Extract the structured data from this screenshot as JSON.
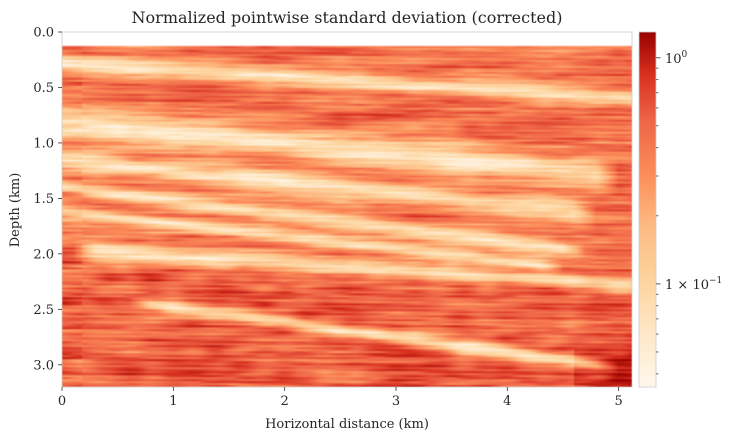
{
  "chart_data": {
    "type": "heatmap",
    "title": "Normalized pointwise standard deviation (corrected)",
    "xlabel": "Horizontal distance (km)",
    "ylabel": "Depth (km)",
    "xlim": [
      0,
      5.12
    ],
    "ylim": [
      3.2,
      0.0
    ],
    "xticks": [
      "0",
      "1",
      "2",
      "3",
      "4",
      "5"
    ],
    "yticks": [
      "0.0",
      "0.5",
      "1.0",
      "1.5",
      "2.0",
      "2.5",
      "3.0"
    ],
    "colormap": "OrRd",
    "colorbar": {
      "scale": "log",
      "range": [
        0.035,
        1.3
      ],
      "major_ticks": [
        {
          "value": 1.0,
          "mantissa": "",
          "base": "10",
          "exponent": "0"
        },
        {
          "value": 0.1,
          "mantissa": "1 × ",
          "base": "10",
          "exponent": "−1"
        }
      ],
      "minor_ticks": [
        0.04,
        0.05,
        0.06,
        0.07,
        0.08,
        0.09,
        0.2,
        0.3,
        0.4,
        0.5,
        0.6,
        0.7,
        0.8,
        0.9
      ]
    },
    "structure": {
      "data_start_depth_km": 0.12,
      "low_value_bands": [
        {
          "x0": 0.0,
          "y0": 0.28,
          "x1": 5.12,
          "y1": 0.6,
          "width": 0.07
        },
        {
          "x0": 0.0,
          "y0": 0.82,
          "x1": 4.8,
          "y1": 1.28,
          "width": 0.14
        },
        {
          "x0": 0.0,
          "y0": 1.15,
          "x1": 4.6,
          "y1": 1.62,
          "width": 0.09
        },
        {
          "x0": 0.0,
          "y0": 1.4,
          "x1": 4.5,
          "y1": 1.95,
          "width": 0.06
        },
        {
          "x0": 0.0,
          "y0": 1.62,
          "x1": 4.3,
          "y1": 2.1,
          "width": 0.05
        },
        {
          "x0": 0.3,
          "y0": 1.98,
          "x1": 5.12,
          "y1": 2.28,
          "width": 0.07
        },
        {
          "x0": 0.8,
          "y0": 2.45,
          "x1": 4.8,
          "y1": 3.0,
          "width": 0.06
        }
      ]
    }
  }
}
